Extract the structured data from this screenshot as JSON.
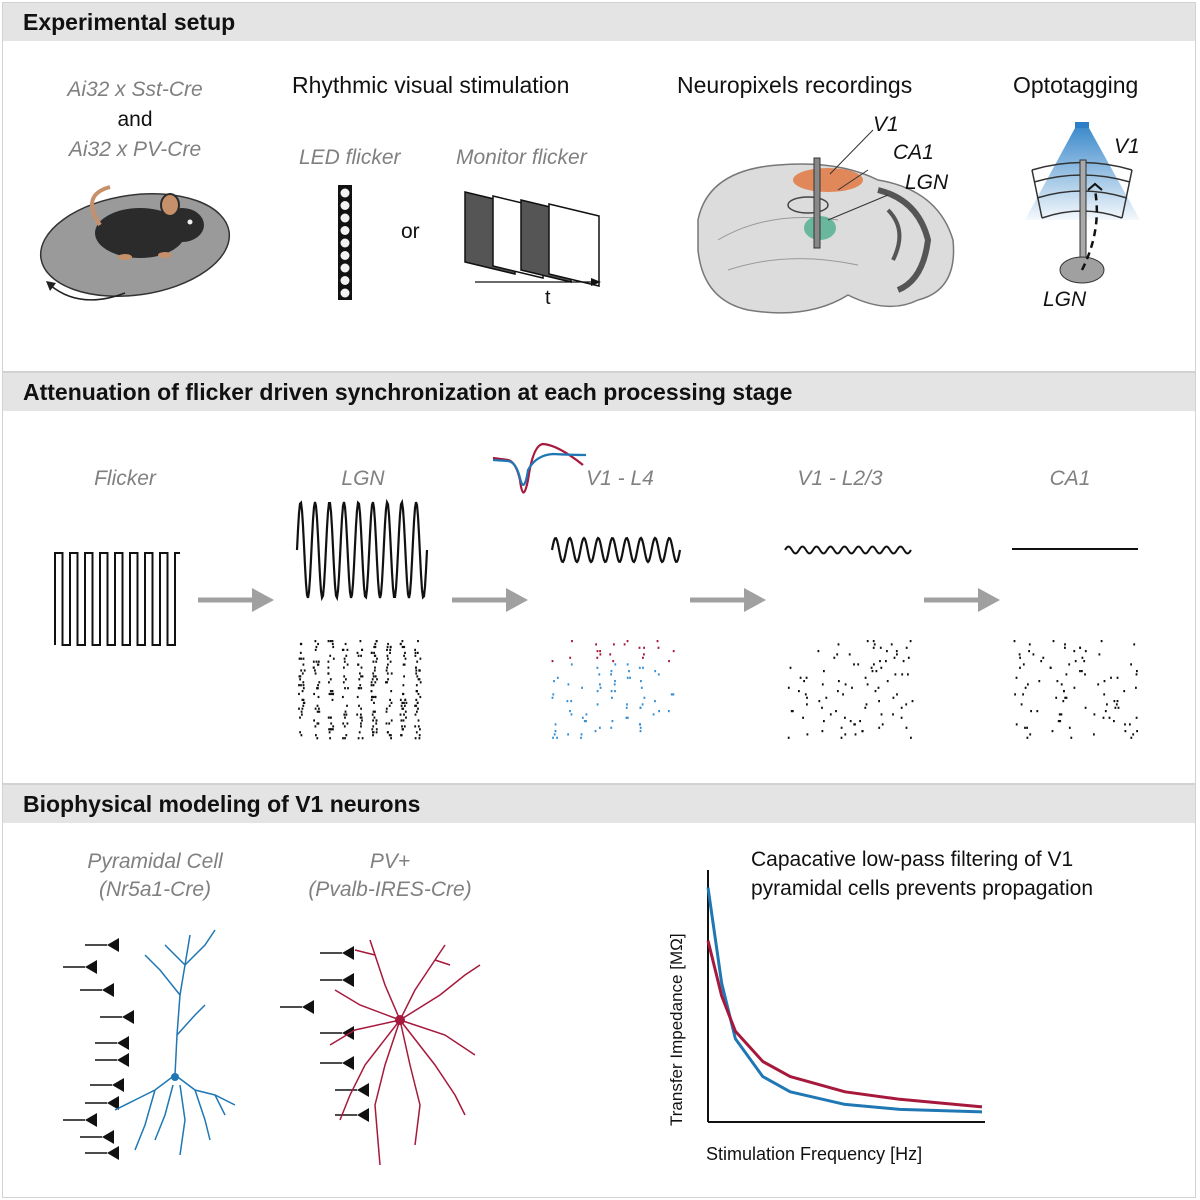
{
  "panels": {
    "setup": {
      "title": "Experimental setup",
      "mouse_line_1": "Ai32 x Sst-Cre",
      "mouse_and": "and",
      "mouse_line_2": "Ai32 x PV-Cre",
      "stim_title": "Rhythmic visual stimulation",
      "led_label": "LED flicker",
      "monitor_label": "Monitor flicker",
      "or_label": "or",
      "time_label": "t",
      "rec_title": "Neuropixels recordings",
      "region_v1": "V1",
      "region_ca1": "CA1",
      "region_lgn": "LGN",
      "opto_title": "Optotagging",
      "opto_v1": "V1",
      "opto_lgn": "LGN"
    },
    "attenuation": {
      "title": "Attenuation of flicker driven synchronization at each processing stage",
      "stages": [
        "Flicker",
        "LGN",
        "V1 - L4",
        "V1 - L2/3",
        "CA1"
      ]
    },
    "modeling": {
      "title": "Biophysical modeling of V1 neurons",
      "pyr_label_1": "Pyramidal Cell",
      "pyr_label_2": "(Nr5a1-Cre)",
      "pv_label_1": "PV+",
      "pv_label_2": "(Pvalb-IRES-Cre)",
      "chart_title_1": "Capacative low-pass filtering of V1",
      "chart_title_2": "pyramidal cells prevents propagation"
    }
  },
  "chart_data": {
    "type": "line",
    "xlabel": "Stimulation Frequency [Hz]",
    "ylabel": "Transfer Impedance [MΩ]",
    "series": [
      {
        "color": "#1f77b4",
        "x": [
          0,
          0.05,
          0.1,
          0.2,
          0.3,
          0.5,
          0.7,
          1.0
        ],
        "y": [
          0.93,
          0.55,
          0.33,
          0.18,
          0.12,
          0.07,
          0.05,
          0.04
        ]
      },
      {
        "color": "#a6193c",
        "x": [
          0,
          0.05,
          0.1,
          0.2,
          0.3,
          0.5,
          0.7,
          1.0
        ],
        "y": [
          0.72,
          0.5,
          0.36,
          0.24,
          0.18,
          0.12,
          0.09,
          0.06
        ]
      }
    ]
  },
  "colors": {
    "header_bg": "#e4e4e4",
    "pyramidal_blue": "#1f77b4",
    "pv_red": "#a6193c",
    "arrow_grey": "#a0a0a0",
    "opto_blue": "#3a8fd0",
    "ca1_orange": "#e2733a",
    "lgn_green": "#4caf8f"
  }
}
